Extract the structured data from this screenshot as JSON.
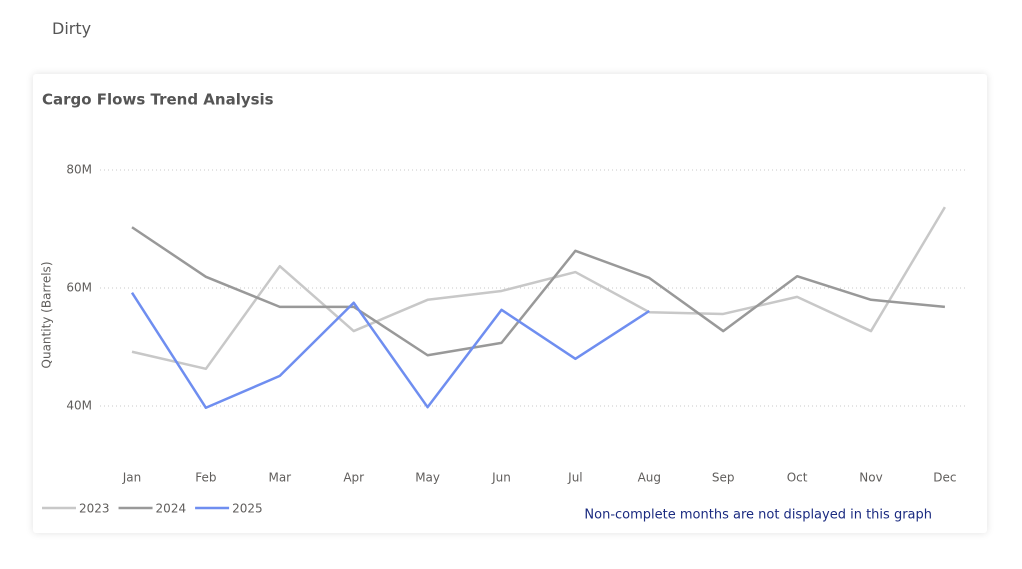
{
  "heading": "Dirty",
  "chart_data": {
    "type": "line",
    "title": "Cargo Flows Trend Analysis",
    "y_label": "Quantity (Barrels)",
    "note": "Non-complete months are not displayed in this graph",
    "categories": [
      "Jan",
      "Feb",
      "Mar",
      "Apr",
      "May",
      "Jun",
      "Jul",
      "Aug",
      "Sep",
      "Oct",
      "Nov",
      "Dec"
    ],
    "series": [
      {
        "name": "2023",
        "color": "#c8c8c8",
        "values": [
          49200000,
          46300000,
          63700000,
          52700000,
          58000000,
          59500000,
          62700000,
          55900000,
          55600000,
          58500000,
          52700000,
          73700000
        ]
      },
      {
        "name": "2024",
        "color": "#999999",
        "values": [
          70300000,
          61900000,
          56800000,
          56800000,
          48600000,
          50700000,
          66300000,
          61700000,
          52700000,
          62000000,
          58000000,
          56800000
        ]
      },
      {
        "name": "2025",
        "color": "#6f8ef0",
        "values": [
          59200000,
          39700000,
          45100000,
          57500000,
          39800000,
          56300000,
          48000000,
          56100000,
          null,
          null,
          null,
          null
        ]
      }
    ],
    "ylim": [
      32000000,
      87000000
    ],
    "yticks": [
      {
        "value": 40000000,
        "label": "40M"
      },
      {
        "value": 60000000,
        "label": "60M"
      },
      {
        "value": 80000000,
        "label": "80M"
      }
    ],
    "grid": true,
    "legend": "bottom-left"
  }
}
